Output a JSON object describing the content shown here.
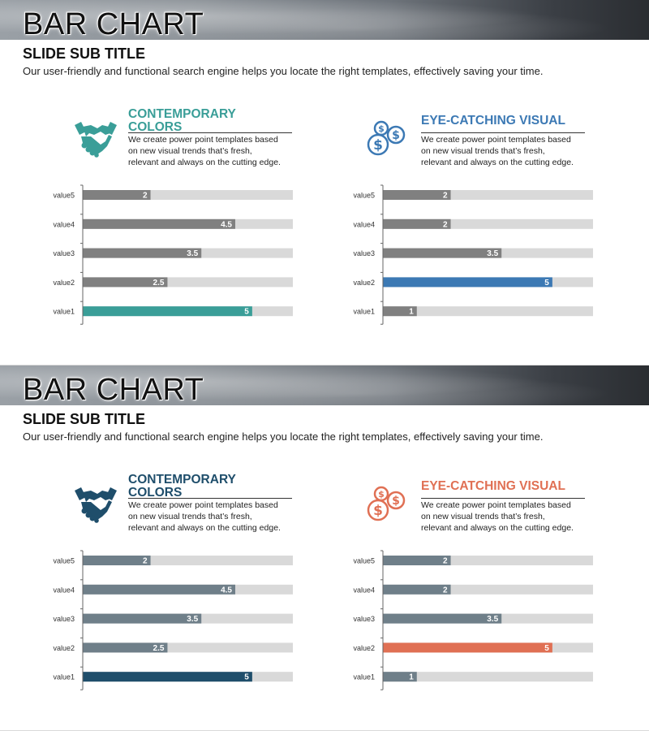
{
  "slides": [
    {
      "title": "BAR CHART",
      "subtitle": "SLIDE SUB TITLE",
      "description": "Our user-friendly and functional search engine helps you locate the right templates, effectively saving your time.",
      "left": {
        "icon": "handshake-icon",
        "heading": "CONTEMPORARY COLORS",
        "heading_line1": "CONTEMPORARY",
        "heading_line2": "COLORS",
        "body": "We create power point templates based\non new visual trends that’s fresh,\nrelevant  and always on the cutting edge.",
        "color": "#3a9e98"
      },
      "right": {
        "icon": "dollar-coins-icon",
        "heading": "EYE-CATCHING VISUAL",
        "body": "We create power point templates based\non new visual trends that’s fresh,\nrelevant  and always on the cutting edge.",
        "color": "#3c79b4"
      }
    },
    {
      "title": "BAR CHART",
      "subtitle": "SLIDE SUB TITLE",
      "description": "Our user-friendly and functional search engine helps you locate the right templates, effectively saving your time.",
      "left": {
        "icon": "handshake-icon",
        "heading": "CONTEMPORARY COLORS",
        "heading_line1": "CONTEMPORARY",
        "heading_line2": "COLORS",
        "body": "We create power point templates based\non new visual trends that’s fresh,\nrelevant  and always on the cutting edge.",
        "color": "#1f4e6b"
      },
      "right": {
        "icon": "dollar-coins-icon",
        "heading": "EYE-CATCHING VISUAL",
        "body": "We create power point templates based\non new visual trends that’s fresh,\nrelevant  and always on the cutting edge.",
        "color": "#e07054"
      }
    }
  ],
  "chart_data": [
    {
      "type": "bar",
      "orientation": "horizontal",
      "categories": [
        "value5",
        "value4",
        "value3",
        "value2",
        "value1"
      ],
      "values": [
        2,
        4.5,
        3.5,
        2.5,
        5
      ],
      "xlim": [
        0,
        6.2
      ],
      "bar_color": "#808080",
      "highlight_index": 4,
      "highlight_color": "#3a9e98",
      "track_color": "#d9d9d9"
    },
    {
      "type": "bar",
      "orientation": "horizontal",
      "categories": [
        "value5",
        "value4",
        "value3",
        "value2",
        "value1"
      ],
      "values": [
        2,
        2,
        3.5,
        5,
        1
      ],
      "xlim": [
        0,
        6.2
      ],
      "bar_color": "#808080",
      "highlight_index": 3,
      "highlight_color": "#3c79b4",
      "track_color": "#d9d9d9"
    },
    {
      "type": "bar",
      "orientation": "horizontal",
      "categories": [
        "value5",
        "value4",
        "value3",
        "value2",
        "value1"
      ],
      "values": [
        2,
        4.5,
        3.5,
        2.5,
        5
      ],
      "xlim": [
        0,
        6.2
      ],
      "bar_color": "#6f7f89",
      "highlight_index": 4,
      "highlight_color": "#1f4e6b",
      "track_color": "#d9d9d9"
    },
    {
      "type": "bar",
      "orientation": "horizontal",
      "categories": [
        "value5",
        "value4",
        "value3",
        "value2",
        "value1"
      ],
      "values": [
        2,
        2,
        3.5,
        5,
        1
      ],
      "xlim": [
        0,
        6.2
      ],
      "bar_color": "#6f7f89",
      "highlight_index": 3,
      "highlight_color": "#e07054",
      "track_color": "#d9d9d9"
    }
  ]
}
